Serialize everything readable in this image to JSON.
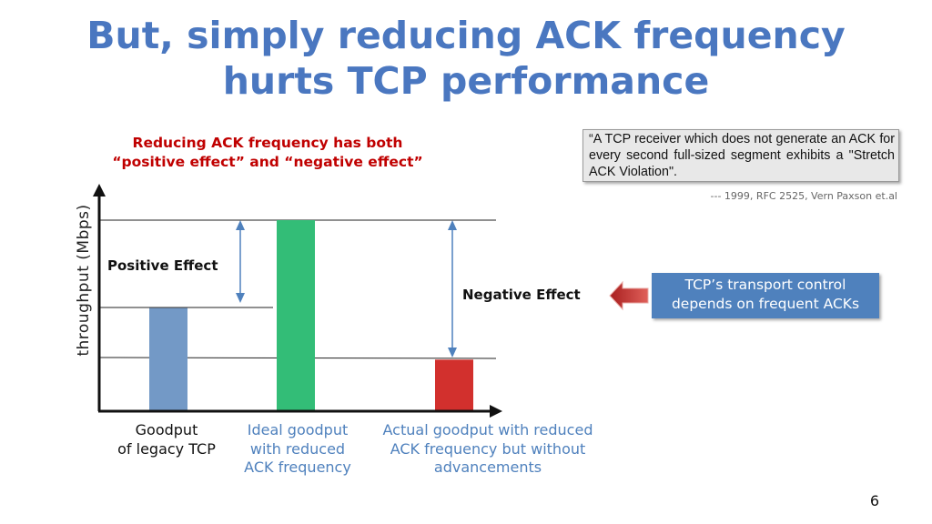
{
  "slide": {
    "title_line1": "But, simply reducing ACK frequency",
    "title_line2": "hurts TCP performance",
    "subtitle_line1": "Reducing ACK frequency has both",
    "subtitle_line2": "“positive effect” and “negative effect”",
    "quote": "“A TCP receiver which does not generate an ACK for every second full-sized segment exhibits a \"Stretch ACK Violation\".",
    "source": "--- 1999, RFC 2525, Vern Paxson et.al",
    "tcp_box_line1": "TCP’s transport control",
    "tcp_box_line2": "depends on frequent ACKs",
    "page_number": "6"
  },
  "chart_data": {
    "type": "bar",
    "ylabel": "throughput (Mbps)",
    "xlabel": "",
    "ylim": [
      0,
      1
    ],
    "grid": false,
    "categories": [
      [
        "Goodput",
        "of legacy TCP"
      ],
      [
        "Ideal goodput",
        "with reduced",
        "ACK frequency"
      ],
      [
        "Actual goodput with reduced",
        "ACK frequency but without",
        "advancements"
      ]
    ],
    "values": [
      0.54,
      1.0,
      0.27
    ],
    "colors": [
      "#7399c6",
      "#33bd77",
      "#d2302d"
    ],
    "annotations": {
      "positive": "Positive Effect",
      "negative": "Negative Effect"
    }
  }
}
